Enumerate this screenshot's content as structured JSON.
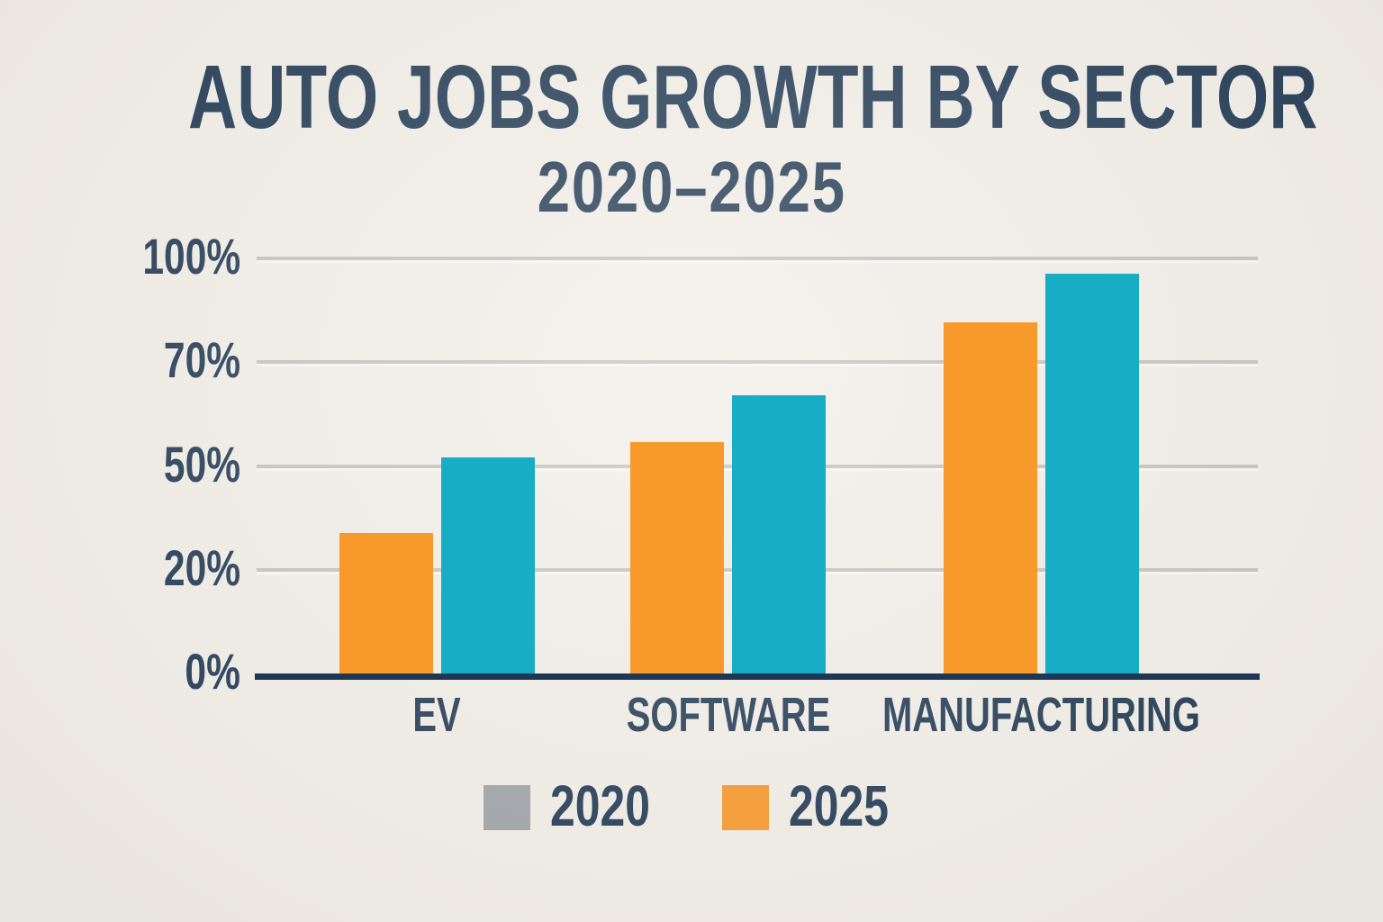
{
  "colors": {
    "background": "#f2eee7",
    "text_navy": "#243c55",
    "gridline_gray": "#c7c3ba",
    "axis_line_navy": "#1e3854",
    "bar_orange": "#f8992b",
    "bar_teal": "#17adc5",
    "legend_gray": "#a0a4a8"
  },
  "chart_data": {
    "type": "bar",
    "title": "AUTO JOBS GROWTH BY SECTOR",
    "subtitle": "2020–2025",
    "unit": "%",
    "categories": [
      "EV",
      "SOFTWARE",
      "MANUFACTURING"
    ],
    "y_axis": {
      "tick_labels_bottom_up": [
        "0%",
        "20%",
        "50%",
        "70%",
        "100%"
      ],
      "tick_values_bottom_up": [
        0,
        20,
        50,
        70,
        100
      ],
      "evenly_spaced_ticks": true,
      "grid": true
    },
    "series": [
      {
        "swatch_name": "orange",
        "hex": "#f8992b",
        "values": [
          31,
          55,
          82
        ]
      },
      {
        "swatch_name": "teal",
        "hex": "#17adc5",
        "values": [
          52,
          64,
          96
        ]
      }
    ],
    "legend": {
      "position": "bottom",
      "entries": [
        {
          "label": "2020",
          "swatch_hex": "#a0a4a8"
        },
        {
          "label": "2025",
          "swatch_hex": "#f8992b"
        }
      ]
    }
  }
}
